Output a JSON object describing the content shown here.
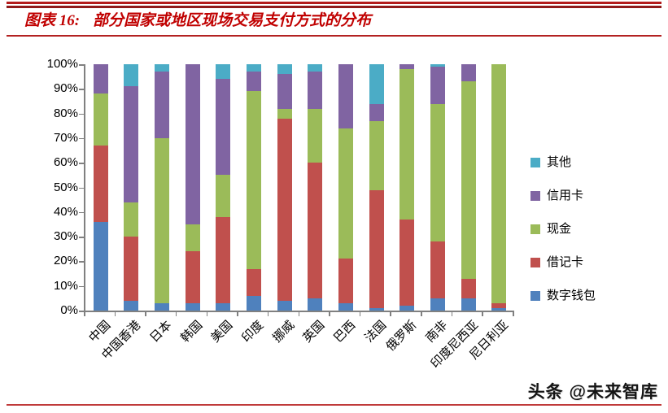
{
  "header": {
    "title_prefix": "图表 16:",
    "title": "部分国家或地区现场交易支付方式的分布"
  },
  "footer": {
    "watermark": "头条 @未来智库"
  },
  "colors": {
    "accent_red": "#c00000",
    "axis_gray": "#808080",
    "digital_wallet_blue": "#4F81BD",
    "debit_card_red": "#C0504D",
    "cash_green": "#9BBB59",
    "credit_card_purple": "#8064A2",
    "other_cyan": "#4BACC6"
  },
  "chart_data": {
    "type": "bar",
    "stacked": true,
    "title": "部分国家或地区现场交易支付方式的分布",
    "xlabel": "",
    "ylabel": "",
    "ylim": [
      0,
      100
    ],
    "grid": false,
    "legend_position": "right",
    "y_ticks": [
      "100%",
      "90%",
      "80%",
      "70%",
      "60%",
      "50%",
      "40%",
      "30%",
      "20%",
      "10%",
      "0%"
    ],
    "categories": [
      "中国",
      "中国香港",
      "日本",
      "韩国",
      "美国",
      "印度",
      "挪威",
      "英国",
      "巴西",
      "法国",
      "俄罗斯",
      "南非",
      "印度尼西亚",
      "尼日利亚"
    ],
    "series": [
      {
        "name": "数字钱包",
        "color": "#4F81BD",
        "values": [
          36,
          4,
          3,
          3,
          3,
          6,
          4,
          5,
          3,
          1,
          2,
          5,
          5,
          1
        ]
      },
      {
        "name": "借记卡",
        "color": "#C0504D",
        "values": [
          31,
          26,
          0,
          21,
          35,
          11,
          74,
          55,
          18,
          48,
          35,
          23,
          8,
          2
        ]
      },
      {
        "name": "现金",
        "color": "#9BBB59",
        "values": [
          21,
          14,
          67,
          11,
          17,
          72,
          4,
          22,
          53,
          28,
          61,
          56,
          80,
          97
        ]
      },
      {
        "name": "信用卡",
        "color": "#8064A2",
        "values": [
          12,
          47,
          27,
          65,
          39,
          8,
          14,
          15,
          26,
          7,
          2,
          15,
          7,
          0
        ]
      },
      {
        "name": "其他",
        "color": "#4BACC6",
        "values": [
          0,
          9,
          3,
          0,
          6,
          3,
          4,
          3,
          0,
          16,
          0,
          1,
          0,
          0
        ]
      }
    ],
    "legend_order_top_to_bottom": [
      "其他",
      "信用卡",
      "现金",
      "借记卡",
      "数字钱包"
    ]
  }
}
